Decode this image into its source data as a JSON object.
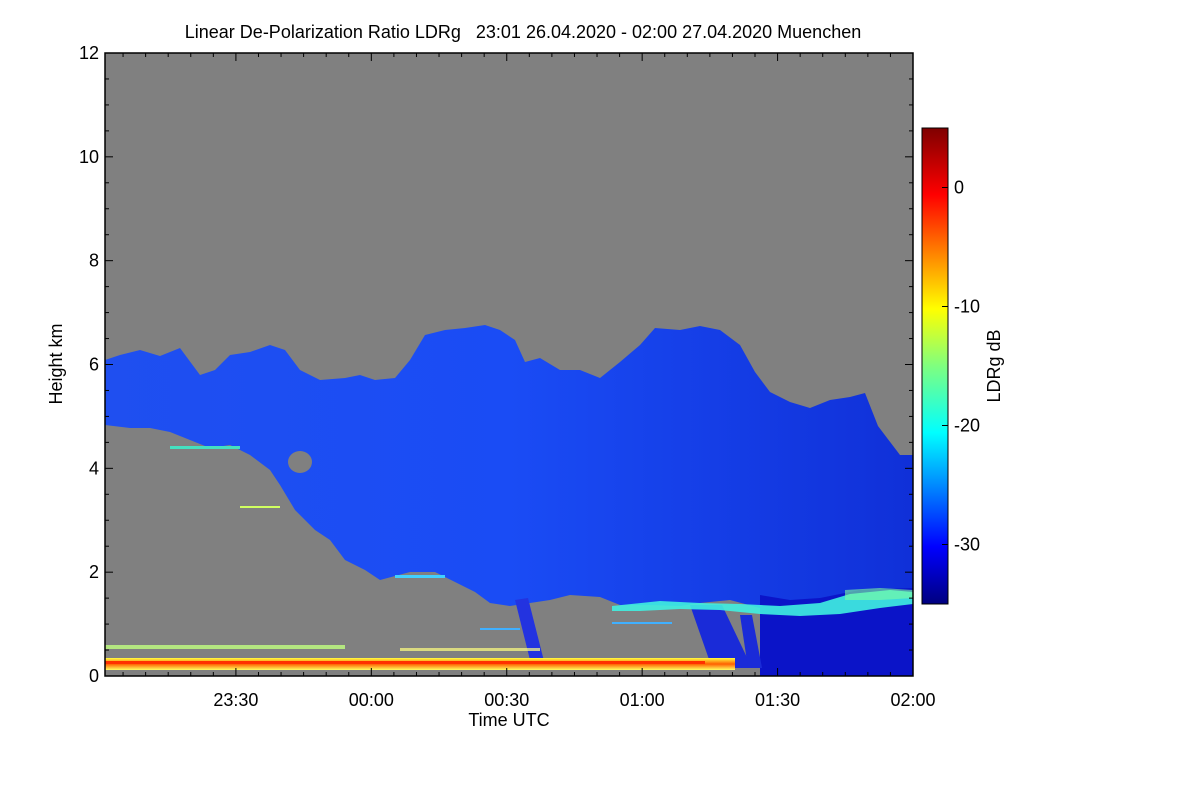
{
  "chart_data": {
    "type": "heatmap",
    "title": "Linear De-Polarization Ratio LDRg   23:01 26.04.2020 - 02:00 27.04.2020 Muenchen",
    "xlabel": "Time UTC",
    "ylabel": "Height km",
    "x_range": [
      "23:01",
      "02:00"
    ],
    "x_ticks": [
      "23:30",
      "00:00",
      "00:30",
      "01:00",
      "01:30",
      "02:00"
    ],
    "y_range_km": [
      0,
      12
    ],
    "y_ticks": [
      "0",
      "2",
      "4",
      "6",
      "8",
      "10",
      "12"
    ],
    "colorbar": {
      "label": "LDRg dB",
      "range_db": [
        -35,
        5
      ],
      "ticks": [
        "0",
        "-10",
        "-20",
        "-30"
      ],
      "colormap": "jet"
    },
    "background_color": "#808080",
    "features": [
      {
        "name": "ice cloud layer",
        "time_range": [
          "23:01",
          "02:00"
        ],
        "base_km": [
          1.0,
          4.5
        ],
        "top_km": [
          4.4,
          6.8
        ],
        "ldr_db": -30
      },
      {
        "name": "melting layer band",
        "time_range": [
          "00:55",
          "02:00"
        ],
        "height_km": 1.3,
        "ldr_db": -20
      },
      {
        "name": "near-ground clutter",
        "time_range": [
          "23:01",
          "01:25"
        ],
        "height_km": [
          0.1,
          0.3
        ],
        "ldr_db": -5
      }
    ]
  }
}
